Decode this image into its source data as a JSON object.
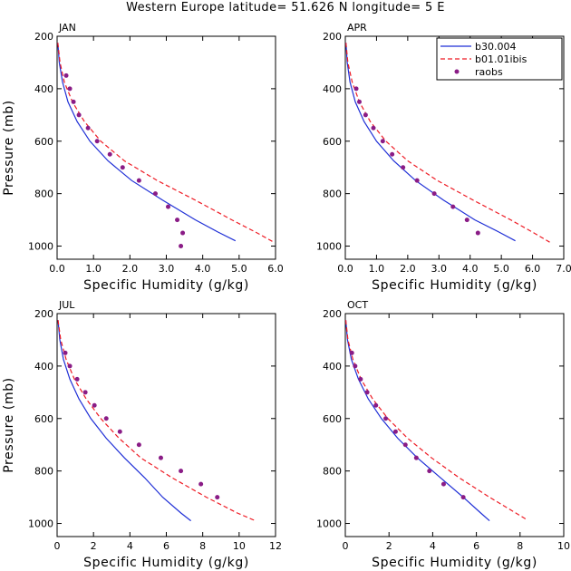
{
  "title": "Western Europe  latitude= 51.626 N longitude= 5 E",
  "colors": {
    "b30_004": "#1f2fd6",
    "b01_01ibis": "#ee1b24",
    "raobs": "#8a1c86",
    "axis": "#000000",
    "background": "#ffffff"
  },
  "legend": {
    "placement": "top-right of APR panel",
    "entries": [
      {
        "label": "b30.004",
        "style": "solid-line",
        "color_key": "b30_004"
      },
      {
        "label": "b01.01ibis",
        "style": "dashed-line",
        "color_key": "b01_01ibis"
      },
      {
        "label": "raobs",
        "style": "dot",
        "color_key": "raobs"
      }
    ]
  },
  "chart_data": [
    {
      "type": "line",
      "panel": "JAN",
      "xlabel": "Specific Humidity (g/kg)",
      "ylabel": "Pressure (mb)",
      "xlim": [
        0,
        6
      ],
      "ylim": [
        1050,
        200
      ],
      "xticks": [
        "0.0",
        "1.0",
        "2.0",
        "3.0",
        "4.0",
        "5.0",
        "6.0"
      ],
      "xtick_values": [
        0,
        1,
        2,
        3,
        4,
        5,
        6
      ],
      "yticks": [
        "200",
        "400",
        "600",
        "800",
        "1000"
      ],
      "ytick_values": [
        200,
        400,
        600,
        800,
        1000
      ],
      "grid": false,
      "series": [
        {
          "name": "b30.004",
          "kind": "line",
          "x": [
            0.02,
            0.06,
            0.15,
            0.3,
            0.55,
            0.9,
            1.4,
            2.05,
            2.9,
            3.8,
            4.4,
            4.9
          ],
          "y": [
            225,
            300,
            375,
            450,
            525,
            600,
            675,
            750,
            825,
            900,
            945,
            980
          ]
        },
        {
          "name": "b01.01ibis",
          "kind": "dashed",
          "x": [
            0.02,
            0.08,
            0.2,
            0.42,
            0.75,
            1.2,
            1.85,
            2.75,
            3.8,
            4.8,
            5.5,
            5.95
          ],
          "y": [
            225,
            300,
            375,
            450,
            525,
            600,
            675,
            750,
            825,
            900,
            950,
            985
          ]
        },
        {
          "name": "raobs",
          "kind": "points",
          "x": [
            0.25,
            0.35,
            0.45,
            0.6,
            0.85,
            1.1,
            1.45,
            1.8,
            2.25,
            2.7,
            3.05,
            3.3,
            3.45,
            3.4
          ],
          "y": [
            350,
            400,
            450,
            500,
            550,
            600,
            650,
            700,
            750,
            800,
            850,
            900,
            950,
            1000
          ]
        }
      ]
    },
    {
      "type": "line",
      "panel": "APR",
      "xlabel": "Specific Humidity (g/kg)",
      "ylabel": "Pressure (mb)",
      "xlim": [
        0,
        7
      ],
      "ylim": [
        1050,
        200
      ],
      "xticks": [
        "0.0",
        "1.0",
        "2.0",
        "3.0",
        "4.0",
        "5.0",
        "6.0",
        "7.0"
      ],
      "xtick_values": [
        0,
        1,
        2,
        3,
        4,
        5,
        6,
        7
      ],
      "yticks": [
        "200",
        "400",
        "600",
        "800",
        "1000"
      ],
      "ytick_values": [
        200,
        400,
        600,
        800,
        1000
      ],
      "grid": false,
      "series": [
        {
          "name": "b30.004",
          "kind": "line",
          "x": [
            0.02,
            0.06,
            0.15,
            0.32,
            0.6,
            1.0,
            1.55,
            2.25,
            3.15,
            4.15,
            4.9,
            5.45
          ],
          "y": [
            225,
            300,
            375,
            450,
            525,
            600,
            675,
            750,
            825,
            900,
            945,
            980
          ]
        },
        {
          "name": "b01.01ibis",
          "kind": "dashed",
          "x": [
            0.02,
            0.08,
            0.22,
            0.45,
            0.8,
            1.3,
            2.0,
            2.95,
            4.1,
            5.3,
            6.05,
            6.55
          ],
          "y": [
            225,
            300,
            375,
            450,
            525,
            600,
            675,
            750,
            825,
            900,
            950,
            985
          ]
        },
        {
          "name": "raobs",
          "kind": "points",
          "x": [
            0.35,
            0.45,
            0.65,
            0.9,
            1.2,
            1.5,
            1.85,
            2.3,
            2.85,
            3.45,
            3.9,
            4.25
          ],
          "y": [
            400,
            450,
            500,
            550,
            600,
            650,
            700,
            750,
            800,
            850,
            900,
            950
          ]
        }
      ]
    },
    {
      "type": "line",
      "panel": "JUL",
      "xlabel": "Specific Humidity (g/kg)",
      "ylabel": "Pressure (mb)",
      "xlim": [
        0,
        12
      ],
      "ylim": [
        1050,
        200
      ],
      "xticks": [
        "0",
        "2",
        "4",
        "6",
        "8",
        "10",
        "12"
      ],
      "xtick_values": [
        0,
        2,
        4,
        6,
        8,
        10,
        12
      ],
      "yticks": [
        "200",
        "400",
        "600",
        "800",
        "1000"
      ],
      "ytick_values": [
        200,
        400,
        600,
        800,
        1000
      ],
      "grid": false,
      "series": [
        {
          "name": "b30.004",
          "kind": "line",
          "x": [
            0.05,
            0.15,
            0.35,
            0.7,
            1.2,
            1.85,
            2.7,
            3.7,
            4.8,
            5.8,
            6.8,
            7.35
          ],
          "y": [
            225,
            300,
            375,
            450,
            525,
            600,
            675,
            750,
            825,
            900,
            960,
            990
          ]
        },
        {
          "name": "b01.01ibis",
          "kind": "dashed",
          "x": [
            0.05,
            0.2,
            0.5,
            0.95,
            1.6,
            2.4,
            3.4,
            4.6,
            6.3,
            8.2,
            9.9,
            10.9
          ],
          "y": [
            225,
            300,
            375,
            450,
            525,
            600,
            675,
            750,
            825,
            900,
            960,
            990
          ]
        },
        {
          "name": "raobs",
          "kind": "points",
          "x": [
            0.45,
            0.7,
            1.1,
            1.55,
            2.05,
            2.7,
            3.45,
            4.5,
            5.7,
            6.8,
            7.9,
            8.8
          ],
          "y": [
            350,
            400,
            450,
            500,
            550,
            600,
            650,
            700,
            750,
            800,
            850,
            900
          ]
        }
      ]
    },
    {
      "type": "line",
      "panel": "OCT",
      "xlabel": "Specific Humidity (g/kg)",
      "ylabel": "Pressure (mb)",
      "xlim": [
        0,
        10
      ],
      "ylim": [
        1050,
        200
      ],
      "xticks": [
        "0",
        "2",
        "4",
        "6",
        "8",
        "10"
      ],
      "xtick_values": [
        0,
        2,
        4,
        6,
        8,
        10
      ],
      "yticks": [
        "200",
        "400",
        "600",
        "800",
        "1000"
      ],
      "ytick_values": [
        200,
        400,
        600,
        800,
        1000
      ],
      "grid": false,
      "series": [
        {
          "name": "b30.004",
          "kind": "line",
          "x": [
            0.02,
            0.1,
            0.28,
            0.6,
            1.05,
            1.65,
            2.4,
            3.3,
            4.35,
            5.4,
            6.2,
            6.6
          ],
          "y": [
            225,
            300,
            375,
            450,
            525,
            600,
            675,
            750,
            825,
            900,
            960,
            990
          ]
        },
        {
          "name": "b01.01ibis",
          "kind": "dashed",
          "x": [
            0.02,
            0.12,
            0.35,
            0.72,
            1.25,
            1.95,
            2.85,
            3.95,
            5.2,
            6.6,
            7.7,
            8.3
          ],
          "y": [
            225,
            300,
            375,
            450,
            525,
            600,
            675,
            750,
            825,
            900,
            955,
            985
          ]
        },
        {
          "name": "raobs",
          "kind": "points",
          "x": [
            0.3,
            0.45,
            0.7,
            1.0,
            1.4,
            1.85,
            2.3,
            2.75,
            3.25,
            3.85,
            4.5,
            5.4
          ],
          "y": [
            350,
            400,
            450,
            500,
            550,
            600,
            650,
            700,
            750,
            800,
            850,
            900
          ]
        }
      ]
    }
  ]
}
